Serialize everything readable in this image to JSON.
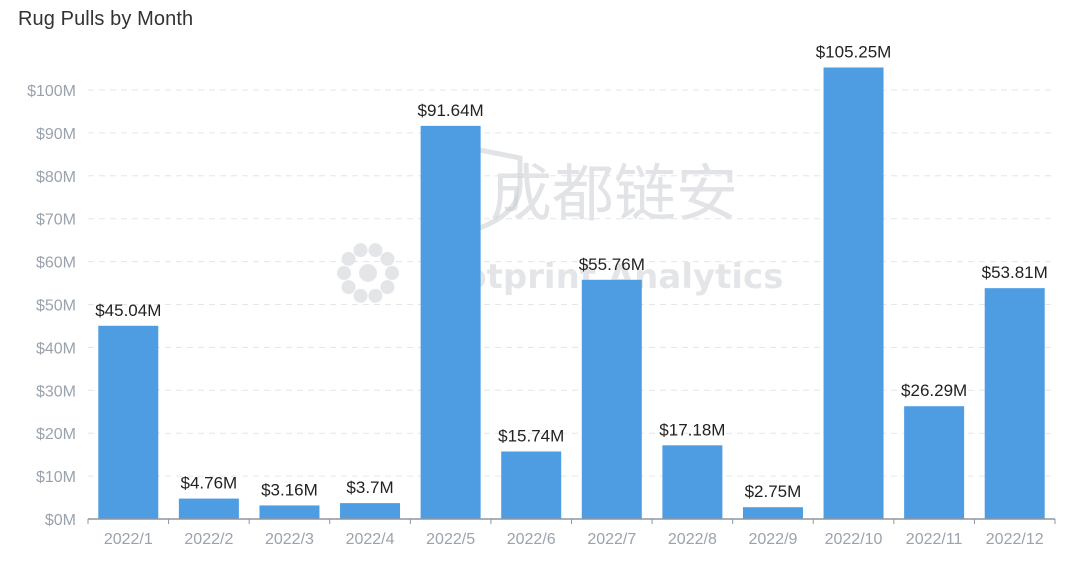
{
  "title": "Rug Pulls by Month",
  "watermark": {
    "line1": "成都链安",
    "line2": "Footprint Analytics",
    "color": "#c9cdd3"
  },
  "chart_data": {
    "type": "bar",
    "title": "Rug Pulls by Month",
    "xlabel": "",
    "ylabel": "",
    "categories": [
      "2022/1",
      "2022/2",
      "2022/3",
      "2022/4",
      "2022/5",
      "2022/6",
      "2022/7",
      "2022/8",
      "2022/9",
      "2022/10",
      "2022/11",
      "2022/12"
    ],
    "values": [
      45.04,
      4.76,
      3.16,
      3.7,
      91.64,
      15.74,
      55.76,
      17.18,
      2.75,
      105.25,
      26.29,
      53.81
    ],
    "data_labels": [
      "$45.04M",
      "$4.76M",
      "$3.16M",
      "$3.7M",
      "$91.64M",
      "$15.74M",
      "$55.76M",
      "$17.18M",
      "$2.75M",
      "$105.25M",
      "$26.29M",
      "$53.81M"
    ],
    "y_ticks": [
      0,
      10,
      20,
      30,
      40,
      50,
      60,
      70,
      80,
      90,
      100
    ],
    "y_tick_labels": [
      "$0M",
      "$10M",
      "$20M",
      "$30M",
      "$40M",
      "$50M",
      "$60M",
      "$70M",
      "$80M",
      "$90M",
      "$100M"
    ],
    "ylim": [
      0,
      110
    ],
    "grid": true,
    "legend": "none",
    "bar_color": "#4e9de3"
  }
}
